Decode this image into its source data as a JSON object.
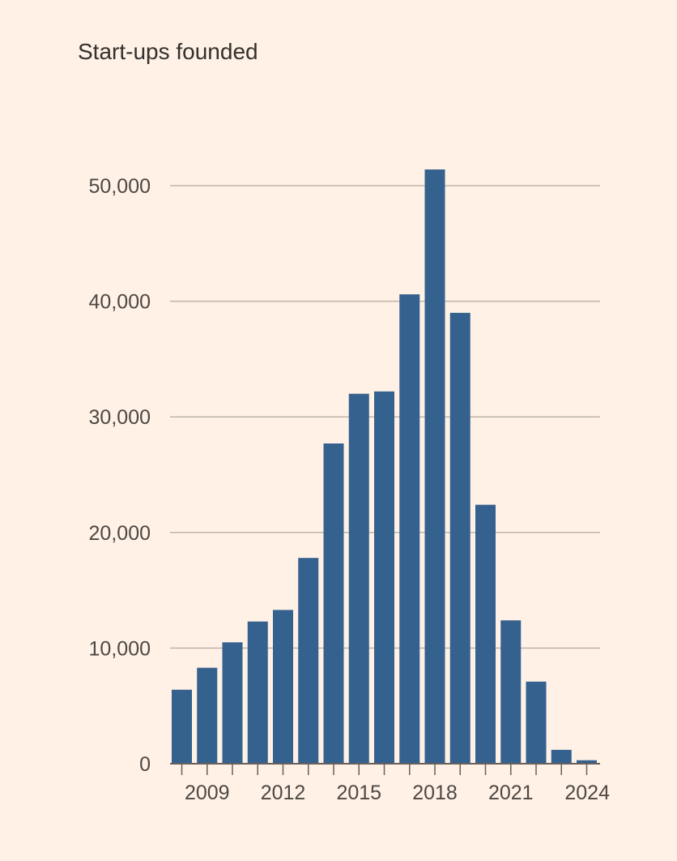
{
  "chart_data": {
    "type": "bar",
    "title": "Start-ups founded",
    "xlabel": "",
    "ylabel": "",
    "categories": [
      "2008",
      "2009",
      "2010",
      "2011",
      "2012",
      "2013",
      "2014",
      "2015",
      "2016",
      "2017",
      "2018",
      "2019",
      "2020",
      "2021",
      "2022",
      "2023",
      "2024"
    ],
    "values": [
      6400,
      8300,
      10500,
      12300,
      13300,
      17800,
      27700,
      32000,
      32200,
      40600,
      51400,
      39000,
      22400,
      12400,
      7100,
      1200,
      300
    ],
    "ylim": [
      0,
      50000
    ],
    "y_ticks": [
      "0",
      "10,000",
      "20,000",
      "30,000",
      "40,000",
      "50,000"
    ],
    "x_tick_labels": [
      "2009",
      "2012",
      "2015",
      "2018",
      "2021",
      "2024"
    ],
    "grid": true,
    "bar_color": "#35618f"
  }
}
